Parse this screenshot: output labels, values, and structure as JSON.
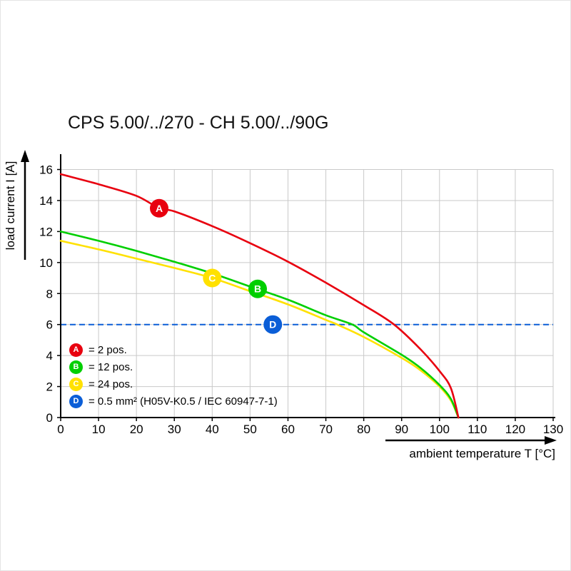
{
  "chart_data": {
    "type": "line",
    "title": "CPS 5.00/../270 - CH 5.00/../90G",
    "xlabel": "ambient temperature T [°C]",
    "ylabel": "load current I [A]",
    "xlim": [
      0,
      130
    ],
    "ylim": [
      0,
      16
    ],
    "xtick_step": 10,
    "ytick_step": 2,
    "grid": true,
    "grid_color": "#c9c9c9",
    "axis_color": "#000000",
    "series": [
      {
        "id": "A",
        "name": "2 pos.",
        "color": "#e8000f",
        "marker": {
          "x": 26,
          "y": 13.5
        },
        "points": [
          [
            0,
            15.7
          ],
          [
            10,
            15.05
          ],
          [
            20,
            14.3
          ],
          [
            26,
            13.5
          ],
          [
            30,
            13.3
          ],
          [
            40,
            12.35
          ],
          [
            50,
            11.25
          ],
          [
            60,
            10.05
          ],
          [
            70,
            8.7
          ],
          [
            80,
            7.25
          ],
          [
            88,
            6.0
          ],
          [
            95,
            4.4
          ],
          [
            100,
            3.0
          ],
          [
            103,
            1.9
          ],
          [
            105,
            0
          ]
        ]
      },
      {
        "id": "B",
        "name": "12 pos.",
        "color": "#00cf00",
        "marker": {
          "x": 52,
          "y": 8.3
        },
        "points": [
          [
            0,
            12.0
          ],
          [
            10,
            11.4
          ],
          [
            20,
            10.75
          ],
          [
            30,
            10.05
          ],
          [
            40,
            9.3
          ],
          [
            50,
            8.45
          ],
          [
            60,
            7.6
          ],
          [
            70,
            6.6
          ],
          [
            77,
            6.0
          ],
          [
            80,
            5.5
          ],
          [
            90,
            4.05
          ],
          [
            95,
            3.2
          ],
          [
            100,
            2.1
          ],
          [
            103,
            1.2
          ],
          [
            105,
            0
          ]
        ]
      },
      {
        "id": "C",
        "name": "24 pos.",
        "color": "#ffe100",
        "marker": {
          "x": 40,
          "y": 9.0
        },
        "points": [
          [
            0,
            11.4
          ],
          [
            10,
            10.85
          ],
          [
            20,
            10.25
          ],
          [
            30,
            9.65
          ],
          [
            40,
            9.0
          ],
          [
            50,
            8.15
          ],
          [
            60,
            7.3
          ],
          [
            70,
            6.3
          ],
          [
            73,
            6.0
          ],
          [
            80,
            5.2
          ],
          [
            90,
            3.85
          ],
          [
            95,
            3.05
          ],
          [
            100,
            2.0
          ],
          [
            103,
            1.1
          ],
          [
            105,
            0
          ]
        ]
      }
    ],
    "reference_line": {
      "id": "D",
      "value": 6,
      "color": "#0b5ed7",
      "style": "dashed",
      "marker": {
        "x": 56,
        "y": 6
      },
      "label": "0.5 mm² (H05V-K0.5 / IEC 60947-7-1)"
    },
    "legend_position": "bottom-left-inside",
    "legend": [
      {
        "letter": "A",
        "color": "#e8000f",
        "label": "= 2 pos."
      },
      {
        "letter": "B",
        "color": "#00cf00",
        "label": "= 12 pos."
      },
      {
        "letter": "C",
        "color": "#ffe100",
        "label": "= 24 pos."
      },
      {
        "letter": "D",
        "color": "#0b5ed7",
        "label": "= 0.5 mm² (H05V-K0.5 / IEC 60947-7-1)"
      }
    ]
  }
}
